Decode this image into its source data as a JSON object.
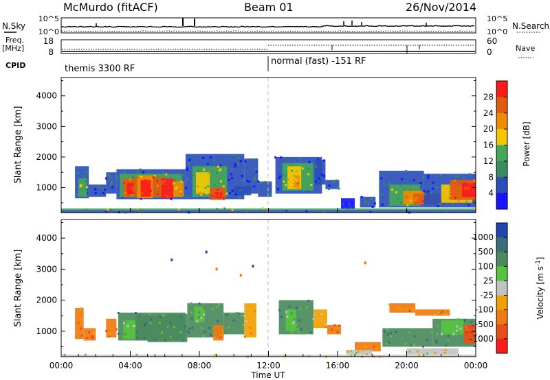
{
  "header": {
    "station": "McMurdo (fitACF)",
    "beam": "Beam 01",
    "date": "26/Nov/2014"
  },
  "summary": {
    "nsky_label": "N.Sky",
    "nsearch_label": "N.Search",
    "counts_ticks": [
      "10^5",
      "10^0"
    ],
    "freq_label_top": "Freq.",
    "freq_label_unit": "[MHz]",
    "freq_ticks": [
      "18",
      "8"
    ],
    "nave_ticks": [
      "60",
      "0"
    ],
    "nave_label": "Nave",
    "cpid_label": "CPID",
    "cpid_segments": [
      {
        "label": "themis 3300 RF",
        "start_hour": 0
      },
      {
        "label": "normal (fast) -151 RF",
        "start_hour": 12
      }
    ]
  },
  "chart_data": [
    {
      "type": "heatmap",
      "quantity": "Power",
      "ylabel": "Slant Range [km]",
      "xlabel": "",
      "ylim": [
        180,
        4600
      ],
      "yticks": [
        "1000",
        "2000",
        "3000",
        "4000"
      ],
      "colorbar": {
        "label": "Power [dB]",
        "ticks": [
          "4",
          "8",
          "12",
          "16",
          "20",
          "24",
          "28"
        ],
        "colors": [
          "#1515ff",
          "#2a4fb8",
          "#3a8a62",
          "#44a858",
          "#f2c800",
          "#f08a00",
          "#e05a10",
          "#ff1a1a"
        ]
      },
      "blocks": [
        {
          "x": [
            0.8,
            1.6
          ],
          "y": [
            650,
            1700
          ],
          "c": 1
        },
        {
          "x": [
            1.0,
            1.5
          ],
          "y": [
            700,
            1300
          ],
          "c": 3
        },
        {
          "x": [
            1.6,
            2.6
          ],
          "y": [
            700,
            1100
          ],
          "c": 1
        },
        {
          "x": [
            2.6,
            3.2
          ],
          "y": [
            800,
            1500
          ],
          "c": 1
        },
        {
          "x": [
            3.2,
            7.2
          ],
          "y": [
            620,
            1600
          ],
          "c": 1
        },
        {
          "x": [
            3.4,
            7.0
          ],
          "y": [
            680,
            1450
          ],
          "c": 3
        },
        {
          "x": [
            3.6,
            4.4
          ],
          "y": [
            700,
            1300
          ],
          "c": 6
        },
        {
          "x": [
            3.8,
            4.2
          ],
          "y": [
            780,
            1150
          ],
          "c": 7
        },
        {
          "x": [
            4.4,
            5.3
          ],
          "y": [
            650,
            1400
          ],
          "c": 5
        },
        {
          "x": [
            4.6,
            5.2
          ],
          "y": [
            700,
            1250
          ],
          "c": 7
        },
        {
          "x": [
            5.3,
            6.0
          ],
          "y": [
            700,
            1350
          ],
          "c": 6
        },
        {
          "x": [
            5.8,
            6.5
          ],
          "y": [
            650,
            1300
          ],
          "c": 7
        },
        {
          "x": [
            6.5,
            7.1
          ],
          "y": [
            700,
            1200
          ],
          "c": 5
        },
        {
          "x": [
            7.2,
            10.6
          ],
          "y": [
            620,
            2100
          ],
          "c": 1
        },
        {
          "x": [
            7.6,
            9.6
          ],
          "y": [
            700,
            1700
          ],
          "c": 3
        },
        {
          "x": [
            7.8,
            8.6
          ],
          "y": [
            800,
            1500
          ],
          "c": 4
        },
        {
          "x": [
            8.6,
            9.5
          ],
          "y": [
            600,
            1000
          ],
          "c": 6
        },
        {
          "x": [
            8.9,
            9.3
          ],
          "y": [
            650,
            850
          ],
          "c": 7
        },
        {
          "x": [
            10.0,
            11.0
          ],
          "y": [
            750,
            1050
          ],
          "c": 1
        },
        {
          "x": [
            10.6,
            11.4
          ],
          "y": [
            800,
            1950
          ],
          "c": 1
        },
        {
          "x": [
            11.4,
            12.2
          ],
          "y": [
            700,
            1200
          ],
          "c": 1
        },
        {
          "x": [
            12.4,
            15.1
          ],
          "y": [
            800,
            2000
          ],
          "c": 1
        },
        {
          "x": [
            12.8,
            14.6
          ],
          "y": [
            900,
            1800
          ],
          "c": 3
        },
        {
          "x": [
            13.1,
            13.9
          ],
          "y": [
            950,
            1700
          ],
          "c": 4
        },
        {
          "x": [
            13.4,
            13.8
          ],
          "y": [
            1000,
            1400
          ],
          "c": 5
        },
        {
          "x": [
            14.7,
            15.3
          ],
          "y": [
            1100,
            1900
          ],
          "c": 1
        },
        {
          "x": [
            15.3,
            16.1
          ],
          "y": [
            950,
            1250
          ],
          "c": 1
        },
        {
          "x": [
            16.2,
            17.0
          ],
          "y": [
            300,
            650
          ],
          "c": 0
        },
        {
          "x": [
            17.3,
            18.2
          ],
          "y": [
            350,
            700
          ],
          "c": 1
        },
        {
          "x": [
            18.4,
            21.0
          ],
          "y": [
            350,
            1550
          ],
          "c": 1
        },
        {
          "x": [
            19.0,
            20.8
          ],
          "y": [
            400,
            1100
          ],
          "c": 3
        },
        {
          "x": [
            19.8,
            21.3
          ],
          "y": [
            450,
            900
          ],
          "c": 5
        },
        {
          "x": [
            20.4,
            22.2
          ],
          "y": [
            450,
            800
          ],
          "c": 6
        },
        {
          "x": [
            21.0,
            24.0
          ],
          "y": [
            350,
            1450
          ],
          "c": 1
        },
        {
          "x": [
            22.0,
            23.8
          ],
          "y": [
            500,
            1100
          ],
          "c": 4
        },
        {
          "x": [
            22.5,
            24.0
          ],
          "y": [
            600,
            1250
          ],
          "c": 6
        },
        {
          "x": [
            23.2,
            24.0
          ],
          "y": [
            700,
            1150
          ],
          "c": 7
        },
        {
          "x": [
            0.0,
            24.0
          ],
          "y": [
            180,
            260
          ],
          "c": 1
        },
        {
          "x": [
            0.0,
            24.0
          ],
          "y": [
            260,
            320
          ],
          "c": 3
        }
      ]
    },
    {
      "type": "heatmap",
      "quantity": "Velocity",
      "ylabel": "Slant Range [km]",
      "xlabel": "Time UT",
      "ylim": [
        180,
        4600
      ],
      "yticks": [
        "1000",
        "2000",
        "3000",
        "4000"
      ],
      "xticks": [
        "00:00",
        "04:00",
        "08:00",
        "12:00",
        "16:00",
        "20:00",
        "00:00"
      ],
      "colorbar": {
        "label": "Velocity [m s",
        "label_sup": "-1",
        "label_end": "]",
        "ticks": [
          "1000",
          "500",
          "100",
          "25",
          "-25",
          "-100",
          "-500",
          "-1000"
        ],
        "colors": [
          "#2244b0",
          "#3a6e7e",
          "#4b8a5c",
          "#56c43e",
          "#c2c2c2",
          "#f2a000",
          "#ee7a10",
          "#e84e1a",
          "#ff1a1a"
        ]
      },
      "blocks": [
        {
          "x": [
            0.8,
            1.3
          ],
          "y": [
            750,
            1750
          ],
          "c": 6
        },
        {
          "x": [
            1.3,
            2.0
          ],
          "y": [
            700,
            1100
          ],
          "c": 6
        },
        {
          "x": [
            2.6,
            3.2
          ],
          "y": [
            800,
            1400
          ],
          "c": 6
        },
        {
          "x": [
            3.3,
            7.2
          ],
          "y": [
            700,
            1600
          ],
          "c": 2
        },
        {
          "x": [
            3.6,
            4.3
          ],
          "y": [
            750,
            1350
          ],
          "c": 3
        },
        {
          "x": [
            4.3,
            5.0
          ],
          "y": [
            700,
            1500
          ],
          "c": 2
        },
        {
          "x": [
            5.0,
            6.2
          ],
          "y": [
            650,
            1500
          ],
          "c": 2
        },
        {
          "x": [
            6.2,
            7.3
          ],
          "y": [
            650,
            1550
          ],
          "c": 2
        },
        {
          "x": [
            7.3,
            9.4
          ],
          "y": [
            800,
            1900
          ],
          "c": 2
        },
        {
          "x": [
            7.7,
            8.3
          ],
          "y": [
            1300,
            1800
          ],
          "c": 3
        },
        {
          "x": [
            8.8,
            9.4
          ],
          "y": [
            700,
            1200
          ],
          "c": 6
        },
        {
          "x": [
            9.4,
            10.6
          ],
          "y": [
            900,
            1600
          ],
          "c": 2
        },
        {
          "x": [
            10.6,
            11.3
          ],
          "y": [
            800,
            1900
          ],
          "c": 5
        },
        {
          "x": [
            12.6,
            14.6
          ],
          "y": [
            900,
            2000
          ],
          "c": 2
        },
        {
          "x": [
            13.0,
            13.6
          ],
          "y": [
            1000,
            1700
          ],
          "c": 3
        },
        {
          "x": [
            14.6,
            15.4
          ],
          "y": [
            1100,
            1700
          ],
          "c": 5
        },
        {
          "x": [
            15.4,
            16.2
          ],
          "y": [
            900,
            1200
          ],
          "c": 6
        },
        {
          "x": [
            17.0,
            18.5
          ],
          "y": [
            350,
            650
          ],
          "c": 6
        },
        {
          "x": [
            18.6,
            21.5
          ],
          "y": [
            500,
            1100
          ],
          "c": 2
        },
        {
          "x": [
            19.0,
            20.5
          ],
          "y": [
            1600,
            1900
          ],
          "c": 6
        },
        {
          "x": [
            20.5,
            22.5
          ],
          "y": [
            1500,
            1700
          ],
          "c": 6
        },
        {
          "x": [
            21.5,
            24.0
          ],
          "y": [
            500,
            1400
          ],
          "c": 2
        },
        {
          "x": [
            22.0,
            23.3
          ],
          "y": [
            900,
            1350
          ],
          "c": 3
        },
        {
          "x": [
            23.3,
            24.0
          ],
          "y": [
            600,
            1200
          ],
          "c": 7
        },
        {
          "x": [
            16.5,
            18.0
          ],
          "y": [
            250,
            400
          ],
          "c": 4
        },
        {
          "x": [
            20.0,
            23.0
          ],
          "y": [
            250,
            450
          ],
          "c": 4
        },
        {
          "x": [
            0.0,
            24.0
          ],
          "y": [
            180,
            240
          ],
          "c": 4
        }
      ],
      "speckles": [
        {
          "x": 9.0,
          "y": 3000,
          "c": 6
        },
        {
          "x": 8.4,
          "y": 3550,
          "c": 0
        },
        {
          "x": 11.1,
          "y": 3100,
          "c": 0
        },
        {
          "x": 10.4,
          "y": 2800,
          "c": 6
        },
        {
          "x": 6.4,
          "y": 3300,
          "c": 0
        },
        {
          "x": 17.6,
          "y": 3200,
          "c": 6
        }
      ]
    }
  ]
}
